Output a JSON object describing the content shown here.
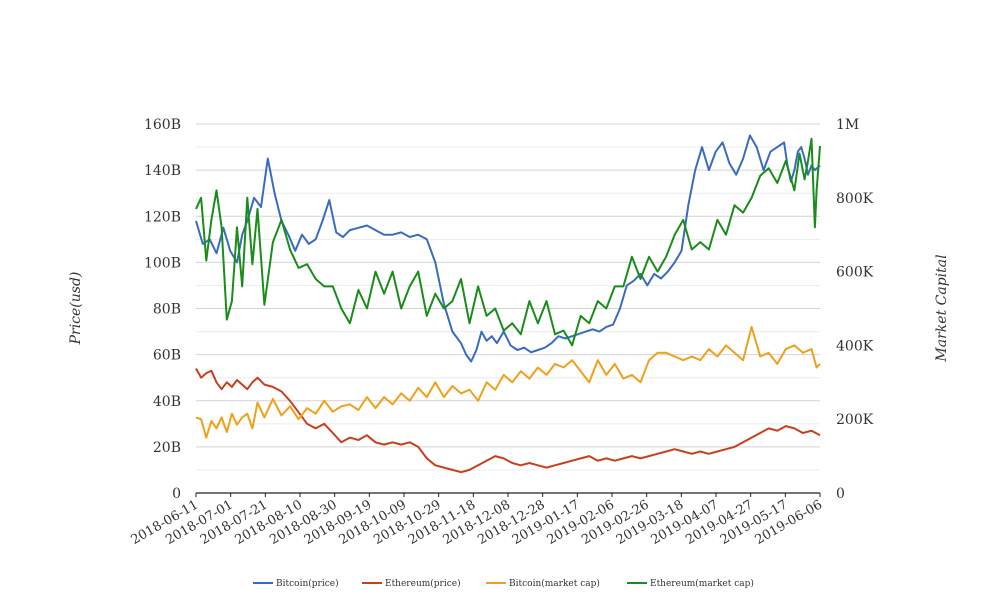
{
  "chart_data": {
    "type": "line",
    "title": "",
    "ylabel_left": "Price(usd)",
    "ylabel_right": "Market Capital",
    "x_ticks": [
      "2018-06-11",
      "2018-07-01",
      "2018-07-21",
      "2018-08-10",
      "2018-08-30",
      "2018-09-19",
      "2018-10-09",
      "2018-10-29",
      "2018-11-18",
      "2018-12-08",
      "2018-12-28",
      "2019-01-17",
      "2019-02-06",
      "2019-02-26",
      "2019-03-18",
      "2019-04-07",
      "2019-04-27",
      "2019-05-17",
      "2019-06-06"
    ],
    "x_range_days": [
      0,
      365
    ],
    "y_left": {
      "range": [
        0,
        160
      ],
      "ticks": [
        0,
        20,
        40,
        60,
        80,
        100,
        120,
        140,
        160
      ],
      "labels": [
        "0",
        "20B",
        "40B",
        "60B",
        "80B",
        "100B",
        "120B",
        "140B",
        "160B"
      ]
    },
    "y_right": {
      "range": [
        0,
        1000
      ],
      "ticks": [
        0,
        200,
        400,
        600,
        800,
        1000
      ],
      "labels": [
        "0",
        "200K",
        "400K",
        "600K",
        "800K",
        "1M"
      ]
    },
    "series": [
      {
        "name": "Bitcoin(price)",
        "color": "#3a6bbf",
        "axis": "left",
        "x": [
          0,
          4,
          8,
          12,
          16,
          20,
          24,
          27,
          30,
          34,
          38,
          42,
          46,
          50,
          54,
          58,
          62,
          66,
          70,
          74,
          78,
          82,
          86,
          90,
          95,
          100,
          105,
          110,
          115,
          120,
          125,
          130,
          135,
          140,
          145,
          150,
          155,
          158,
          161,
          164,
          167,
          170,
          173,
          176,
          180,
          184,
          188,
          192,
          196,
          200,
          204,
          208,
          212,
          216,
          220,
          224,
          228,
          232,
          236,
          240,
          244,
          248,
          252,
          256,
          260,
          264,
          268,
          272,
          276,
          280,
          284,
          288,
          292,
          296,
          300,
          304,
          308,
          312,
          316,
          320,
          324,
          328,
          332,
          336,
          340,
          344,
          346,
          348,
          350,
          352,
          354,
          356,
          358,
          360,
          362,
          365
        ],
        "y": [
          118,
          108,
          110,
          104,
          115,
          105,
          100,
          112,
          118,
          128,
          124,
          145,
          130,
          118,
          112,
          105,
          112,
          108,
          110,
          118,
          127,
          113,
          111,
          114,
          115,
          116,
          114,
          112,
          112,
          113,
          111,
          112,
          110,
          100,
          82,
          70,
          65,
          60,
          57,
          62,
          70,
          66,
          68,
          65,
          70,
          64,
          62,
          63,
          61,
          62,
          63,
          65,
          68,
          67,
          68,
          69,
          70,
          71,
          70,
          72,
          73,
          80,
          90,
          92,
          95,
          90,
          95,
          93,
          96,
          100,
          105,
          125,
          140,
          150,
          140,
          148,
          152,
          143,
          138,
          145,
          155,
          150,
          140,
          148,
          150,
          152,
          142,
          135,
          140,
          148,
          150,
          145,
          138,
          142,
          140,
          142
        ]
      },
      {
        "name": "Ethereum(price)",
        "color": "#c7401c",
        "axis": "left",
        "x": [
          0,
          3,
          6,
          9,
          12,
          15,
          18,
          21,
          24,
          27,
          30,
          33,
          36,
          40,
          45,
          50,
          55,
          60,
          65,
          70,
          75,
          80,
          85,
          90,
          95,
          100,
          105,
          110,
          115,
          120,
          125,
          130,
          135,
          140,
          145,
          150,
          155,
          160,
          165,
          170,
          175,
          180,
          185,
          190,
          195,
          200,
          205,
          210,
          215,
          220,
          225,
          230,
          235,
          240,
          245,
          250,
          255,
          260,
          265,
          270,
          275,
          280,
          285,
          290,
          295,
          300,
          305,
          310,
          315,
          320,
          325,
          330,
          335,
          340,
          345,
          350,
          355,
          360,
          365
        ],
        "y": [
          54,
          50,
          52,
          53,
          48,
          45,
          48,
          46,
          49,
          47,
          45,
          48,
          50,
          47,
          46,
          44,
          40,
          35,
          30,
          28,
          30,
          26,
          22,
          24,
          23,
          25,
          22,
          21,
          22,
          21,
          22,
          20,
          15,
          12,
          11,
          10,
          9,
          10,
          12,
          14,
          16,
          15,
          13,
          12,
          13,
          12,
          11,
          12,
          13,
          14,
          15,
          16,
          14,
          15,
          14,
          15,
          16,
          15,
          16,
          17,
          18,
          19,
          18,
          17,
          18,
          17,
          18,
          19,
          20,
          22,
          24,
          26,
          28,
          27,
          29,
          28,
          26,
          27,
          25
        ]
      },
      {
        "name": "Bitcoin(market cap)",
        "color": "#f0a01a",
        "axis": "right",
        "x": [
          0,
          3,
          6,
          9,
          12,
          15,
          18,
          21,
          24,
          27,
          30,
          33,
          36,
          40,
          45,
          50,
          55,
          60,
          65,
          70,
          75,
          80,
          85,
          90,
          95,
          100,
          105,
          110,
          115,
          120,
          125,
          130,
          135,
          140,
          145,
          150,
          155,
          160,
          165,
          170,
          175,
          180,
          185,
          190,
          195,
          200,
          205,
          210,
          215,
          220,
          225,
          230,
          235,
          240,
          245,
          250,
          255,
          260,
          265,
          270,
          275,
          280,
          285,
          290,
          295,
          300,
          305,
          310,
          315,
          320,
          325,
          330,
          335,
          340,
          345,
          350,
          355,
          360,
          363,
          365
        ],
        "y": [
          205,
          200,
          150,
          195,
          175,
          205,
          165,
          215,
          185,
          205,
          215,
          175,
          245,
          205,
          255,
          210,
          235,
          200,
          230,
          215,
          250,
          220,
          235,
          240,
          225,
          260,
          230,
          260,
          240,
          270,
          250,
          285,
          260,
          300,
          260,
          290,
          270,
          280,
          250,
          300,
          280,
          320,
          300,
          330,
          310,
          340,
          320,
          350,
          340,
          360,
          330,
          300,
          360,
          320,
          350,
          310,
          320,
          300,
          360,
          380,
          380,
          370,
          360,
          370,
          360,
          390,
          370,
          400,
          380,
          360,
          450,
          370,
          380,
          350,
          390,
          400,
          380,
          390,
          340,
          350
        ]
      },
      {
        "name": "Ethereum(market cap)",
        "color": "#1a8c1a",
        "axis": "right",
        "x": [
          0,
          3,
          6,
          9,
          12,
          15,
          18,
          21,
          24,
          27,
          30,
          33,
          36,
          40,
          45,
          50,
          55,
          60,
          65,
          70,
          75,
          80,
          85,
          90,
          95,
          100,
          105,
          110,
          115,
          120,
          125,
          130,
          135,
          140,
          145,
          150,
          155,
          160,
          165,
          170,
          175,
          180,
          185,
          190,
          195,
          200,
          205,
          210,
          215,
          220,
          225,
          230,
          235,
          240,
          245,
          250,
          255,
          260,
          265,
          270,
          275,
          280,
          285,
          290,
          295,
          300,
          305,
          310,
          315,
          320,
          325,
          330,
          335,
          340,
          345,
          350,
          353,
          356,
          358,
          360,
          362,
          363,
          365
        ],
        "y": [
          770,
          800,
          630,
          740,
          820,
          720,
          470,
          520,
          720,
          560,
          800,
          620,
          770,
          510,
          680,
          740,
          660,
          610,
          620,
          580,
          560,
          560,
          500,
          460,
          550,
          500,
          600,
          540,
          600,
          500,
          560,
          600,
          480,
          540,
          500,
          520,
          580,
          460,
          560,
          480,
          500,
          440,
          460,
          430,
          520,
          460,
          520,
          430,
          440,
          400,
          480,
          460,
          520,
          500,
          560,
          560,
          640,
          580,
          640,
          600,
          640,
          700,
          740,
          660,
          680,
          660,
          740,
          700,
          780,
          760,
          800,
          860,
          880,
          840,
          900,
          820,
          920,
          850,
          900,
          960,
          720,
          820,
          940
        ]
      }
    ]
  }
}
